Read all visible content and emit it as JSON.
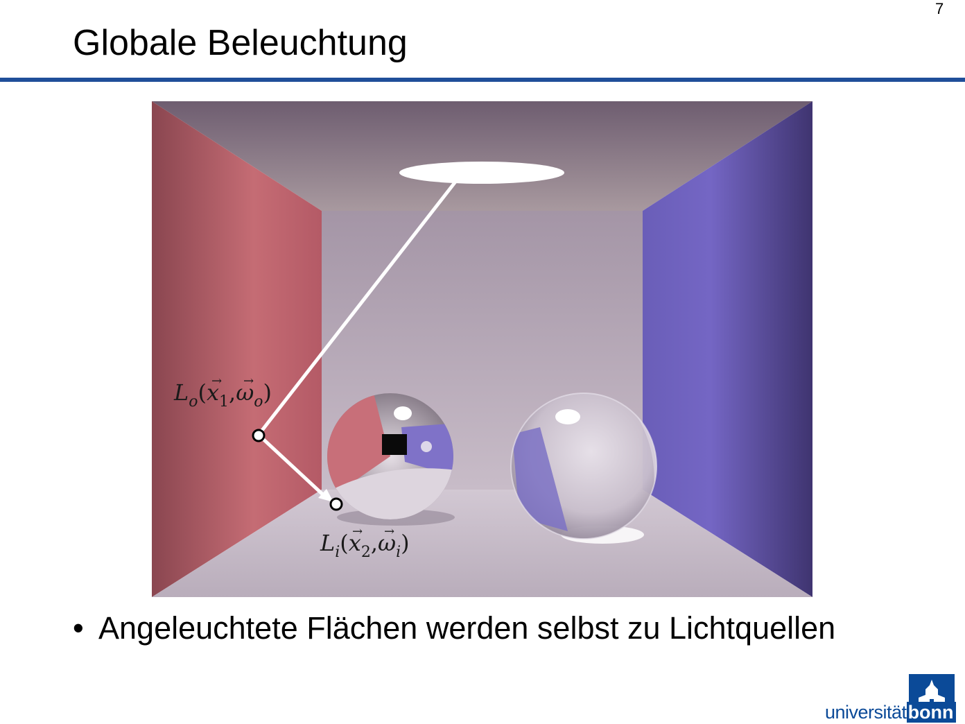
{
  "page_number": "7",
  "title": "Globale Beleuchtung",
  "figure": {
    "label_outgoing": {
      "L": "L",
      "L_sub": "o",
      "open": "(",
      "x": "x",
      "x_sub": "1",
      "comma": ",",
      "omega": "ω",
      "omega_sub": "o",
      "close": ")"
    },
    "label_incoming": {
      "L": "L",
      "L_sub": "i",
      "open": "(",
      "x": "x",
      "x_sub": "2",
      "comma": ",",
      "omega": "ω",
      "omega_sub": "i",
      "close": ")"
    },
    "colors": {
      "left_wall": "#c66b73",
      "right_wall": "#7468c2",
      "back_wall": "#b6a8b7",
      "ceiling": "#8f7f90",
      "floor": "#cbbfcd",
      "light": "#ffffff"
    }
  },
  "bullets": [
    {
      "marker": "•",
      "text": "Angeleuchtete Flächen werden selbst zu Lichtquellen"
    }
  ],
  "logo": {
    "text_regular": "universität",
    "text_bold": "bonn",
    "emblem": "university-building-icon",
    "color": "#0b4a98"
  }
}
